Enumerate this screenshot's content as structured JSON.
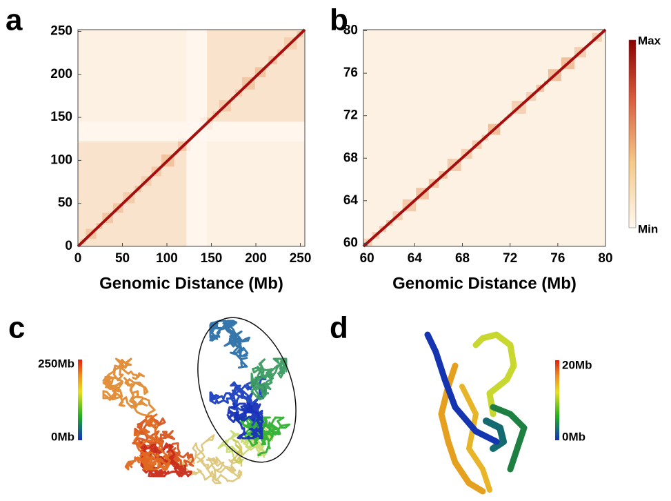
{
  "chart_data": [
    {
      "type": "heatmap",
      "panel": "a",
      "xlabel": "Genomic Distance (Mb)",
      "xlim": [
        0,
        255
      ],
      "ylim": [
        0,
        252
      ],
      "xticks": [
        0,
        50,
        100,
        150,
        200,
        250
      ],
      "yticks": [
        0,
        50,
        100,
        150,
        200,
        250
      ]
    },
    {
      "type": "heatmap",
      "panel": "b",
      "xlabel": "Genomic Distance (Mb)",
      "xlim": [
        59.7,
        80
      ],
      "ylim": [
        59.7,
        80.1
      ],
      "xticks": [
        60,
        64,
        68,
        72,
        76,
        80
      ],
      "yticks": [
        60,
        64,
        68,
        72,
        76,
        80
      ],
      "colorbar": {
        "max": "Max",
        "min": "Min"
      }
    }
  ],
  "structures": [
    {
      "panel": "c",
      "colorbar": {
        "top": "250Mb",
        "bottom": "0Mb"
      }
    },
    {
      "panel": "d",
      "colorbar": {
        "top": "20Mb",
        "bottom": "0Mb"
      }
    }
  ]
}
